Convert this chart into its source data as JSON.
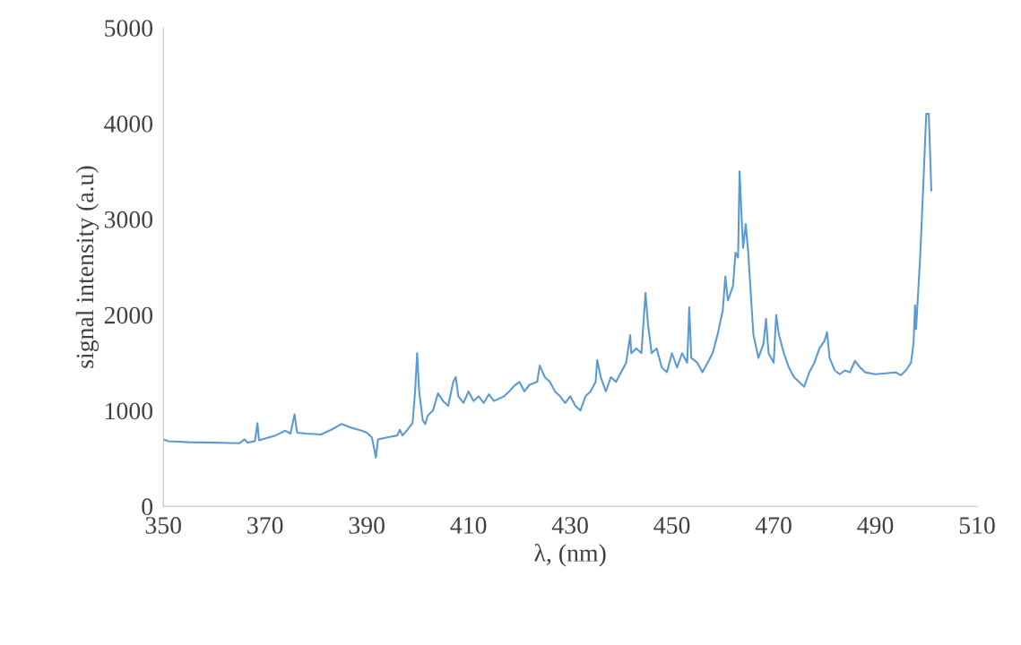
{
  "chart_data": {
    "type": "line",
    "xlabel": "λ, (nm)",
    "ylabel": "signal intensity (a.u)",
    "xlim": [
      350,
      510
    ],
    "xticks": [
      350,
      370,
      390,
      410,
      430,
      450,
      470,
      490,
      510
    ],
    "ylim": [
      0,
      5000
    ],
    "yticks": [
      0,
      1000,
      2000,
      3000,
      4000,
      5000
    ],
    "grid": false,
    "legend": false,
    "marker": "none",
    "line_style": "solid",
    "series": [
      {
        "color": "#5b9bd5",
        "x": [
          350,
          351,
          355,
          360,
          365,
          366,
          366.5,
          368,
          368.5,
          368.8,
          372,
          374,
          375,
          375.8,
          376.3,
          378,
          381,
          383,
          385,
          387,
          389,
          390,
          391,
          391.8,
          392.2,
          394,
          396,
          396.5,
          397,
          398,
          399,
          399.5,
          399.9,
          400.3,
          401,
          401.5,
          402,
          403,
          404,
          405,
          406,
          407,
          407.5,
          408,
          409,
          410,
          411,
          412,
          413,
          414,
          415,
          417,
          418,
          419,
          420,
          421,
          422,
          423.5,
          424,
          425,
          426,
          427,
          428,
          429,
          430,
          431,
          432,
          433,
          434,
          435,
          435.3,
          436,
          437,
          438,
          439,
          440,
          441,
          441.8,
          442,
          443,
          444,
          444.8,
          445.3,
          446,
          447,
          448,
          449,
          450,
          451,
          452,
          453,
          453.4,
          453.8,
          455,
          456,
          457,
          458,
          459,
          460,
          460.5,
          461,
          462,
          462.5,
          463,
          463.3,
          463.8,
          464,
          464.5,
          465,
          466,
          467,
          468,
          468.5,
          469,
          470,
          470.5,
          471,
          472,
          473,
          474,
          475,
          476,
          477,
          478,
          479,
          480,
          480.5,
          481,
          482,
          483,
          484,
          485,
          486,
          487,
          488,
          490,
          492,
          494,
          495,
          496,
          497,
          497.5,
          497.8,
          498,
          498.8,
          499.3,
          500,
          500.5,
          501
        ],
        "values": [
          700,
          680,
          670,
          665,
          660,
          700,
          665,
          680,
          870,
          690,
          740,
          790,
          760,
          960,
          770,
          760,
          750,
          800,
          860,
          820,
          790,
          770,
          720,
          510,
          700,
          720,
          740,
          800,
          740,
          800,
          870,
          1200,
          1600,
          1200,
          900,
          860,
          950,
          1000,
          1180,
          1100,
          1050,
          1300,
          1350,
          1150,
          1080,
          1200,
          1100,
          1150,
          1080,
          1170,
          1100,
          1150,
          1200,
          1260,
          1300,
          1200,
          1270,
          1300,
          1470,
          1350,
          1300,
          1200,
          1150,
          1080,
          1150,
          1050,
          1000,
          1150,
          1200,
          1300,
          1530,
          1350,
          1200,
          1350,
          1300,
          1400,
          1500,
          1790,
          1600,
          1650,
          1600,
          2230,
          1900,
          1600,
          1650,
          1450,
          1400,
          1600,
          1450,
          1600,
          1500,
          2080,
          1550,
          1500,
          1400,
          1500,
          1600,
          1800,
          2050,
          2400,
          2150,
          2300,
          2650,
          2600,
          3500,
          2900,
          2700,
          2950,
          2650,
          1800,
          1550,
          1700,
          1960,
          1600,
          1500,
          2000,
          1800,
          1600,
          1450,
          1350,
          1300,
          1250,
          1400,
          1500,
          1650,
          1730,
          1820,
          1550,
          1420,
          1380,
          1420,
          1400,
          1520,
          1450,
          1400,
          1380,
          1390,
          1400,
          1370,
          1420,
          1500,
          1700,
          2100,
          1850,
          2600,
          3200,
          4100,
          4100,
          3300
        ]
      }
    ]
  }
}
